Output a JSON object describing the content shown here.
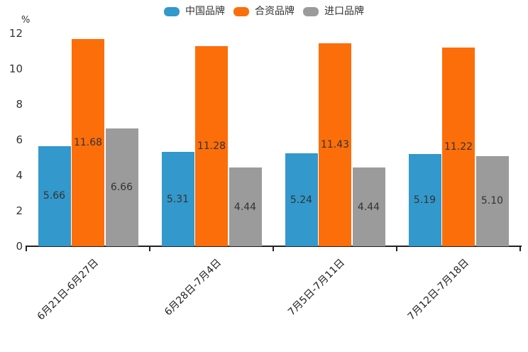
{
  "chart_data": {
    "type": "bar",
    "title": "",
    "unit_label": "%",
    "categories": [
      "6月21日-6月27日",
      "6月28日-7月4日",
      "7月5日-7月11日",
      "7月12日-7月18日"
    ],
    "series": [
      {
        "name": "中国品牌",
        "color": "#3398cb",
        "values": [
          5.66,
          5.31,
          5.24,
          5.19
        ]
      },
      {
        "name": "合资品牌",
        "color": "#fc6e09",
        "values": [
          11.68,
          11.28,
          11.43,
          11.22
        ]
      },
      {
        "name": "进口品牌",
        "color": "#9b9b9b",
        "values": [
          6.66,
          4.44,
          4.44,
          5.1
        ]
      }
    ],
    "ylim": [
      0,
      12
    ],
    "yticks": [
      0,
      2,
      4,
      6,
      8,
      10,
      12
    ],
    "grid": false,
    "legend_position": "top-center",
    "label_position": "inside-middle",
    "label_color": "#333333",
    "axis_color": "#222222",
    "background_color": "#ffffff"
  }
}
